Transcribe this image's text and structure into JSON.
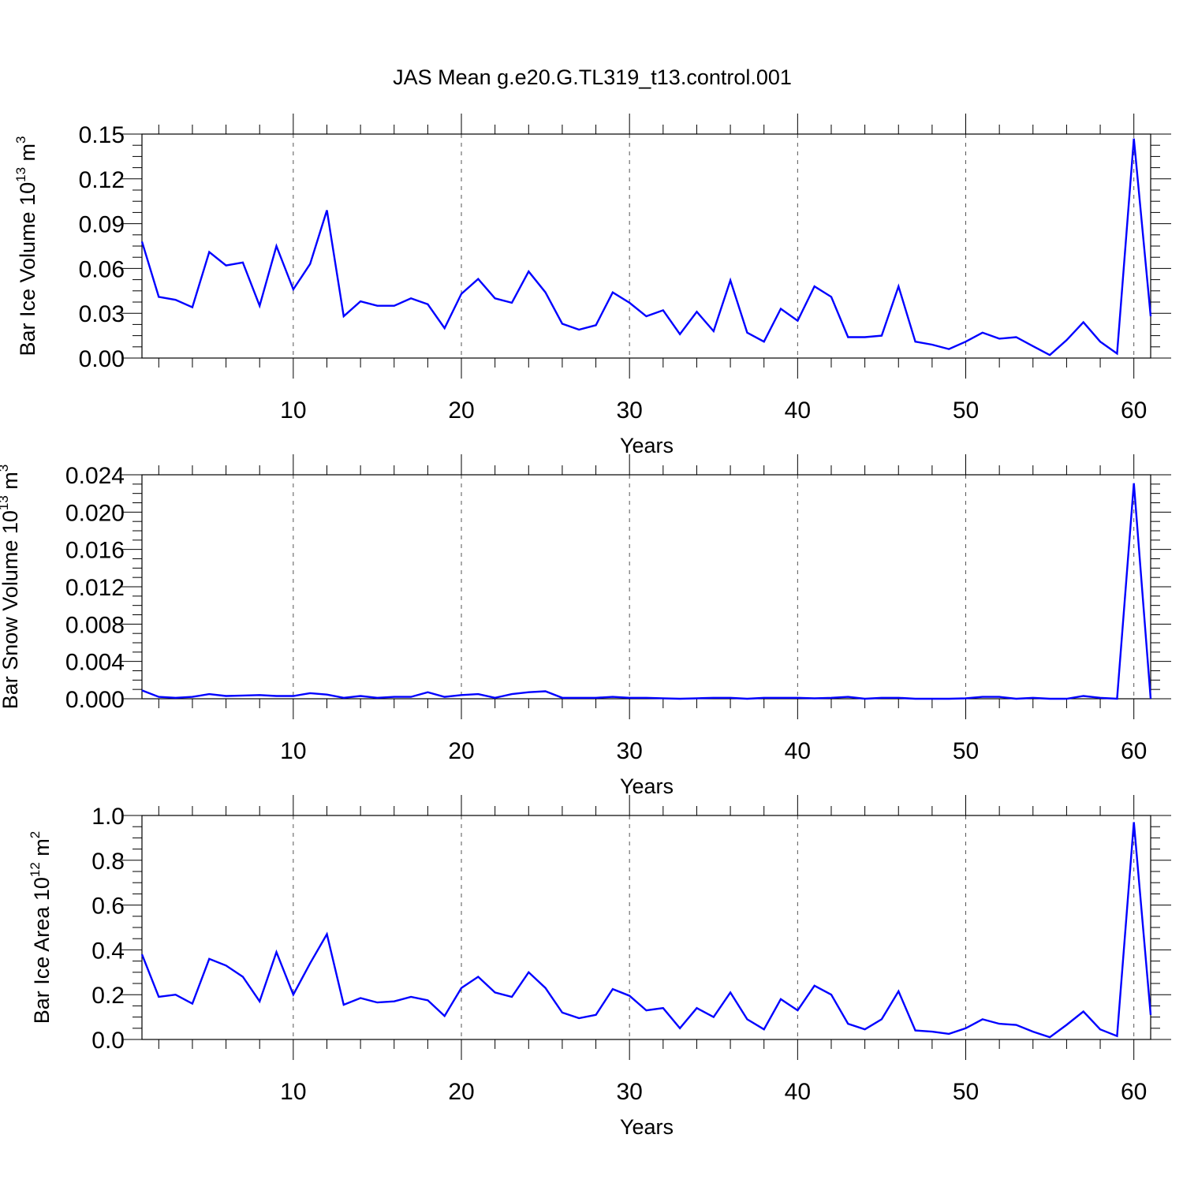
{
  "title": "JAS Mean g.e20.G.TL319_t13.control.001",
  "colors": {
    "series_line": "#0000ff",
    "axis": "#000000",
    "grid": "#555555",
    "background": "#ffffff"
  },
  "chart_data": [
    {
      "type": "line",
      "ylabel": {
        "prefix": "Bar Ice Volume 10",
        "exponent": "13",
        "unit": " m",
        "unit_exponent": "3"
      },
      "xlabel": "Years",
      "xlim": [
        1,
        61
      ],
      "ylim": [
        0,
        0.15
      ],
      "xticks": [
        10,
        20,
        30,
        40,
        50,
        60
      ],
      "xtick_labels": [
        "10",
        "20",
        "30",
        "40",
        "50",
        "60"
      ],
      "yticks": [
        0,
        0.03,
        0.06,
        0.09,
        0.12,
        0.15
      ],
      "ytick_labels": [
        "0.00",
        "0.03",
        "0.06",
        "0.09",
        "0.12",
        "0.15"
      ],
      "grid": "vertical dashed at major x ticks",
      "x": [
        1,
        2,
        3,
        4,
        5,
        6,
        7,
        8,
        9,
        10,
        11,
        12,
        13,
        14,
        15,
        16,
        17,
        18,
        19,
        20,
        21,
        22,
        23,
        24,
        25,
        26,
        27,
        28,
        29,
        30,
        31,
        32,
        33,
        34,
        35,
        36,
        37,
        38,
        39,
        40,
        41,
        42,
        43,
        44,
        45,
        46,
        47,
        48,
        49,
        50,
        51,
        52,
        53,
        54,
        55,
        56,
        57,
        58,
        59,
        60,
        61
      ],
      "series": [
        {
          "values": [
            0.078,
            0.041,
            0.039,
            0.034,
            0.071,
            0.062,
            0.064,
            0.035,
            0.075,
            0.046,
            0.063,
            0.099,
            0.028,
            0.038,
            0.035,
            0.035,
            0.04,
            0.036,
            0.02,
            0.043,
            0.053,
            0.04,
            0.037,
            0.058,
            0.044,
            0.023,
            0.019,
            0.022,
            0.044,
            0.037,
            0.028,
            0.032,
            0.016,
            0.031,
            0.018,
            0.052,
            0.017,
            0.011,
            0.033,
            0.025,
            0.048,
            0.041,
            0.014,
            0.014,
            0.015,
            0.048,
            0.011,
            0.009,
            0.006,
            0.011,
            0.017,
            0.013,
            0.014,
            0.008,
            0.002,
            0.012,
            0.024,
            0.011,
            0.003,
            0.147,
            0.028
          ]
        }
      ]
    },
    {
      "type": "line",
      "ylabel": {
        "prefix": "Bar Snow Volume 10",
        "exponent": "13",
        "unit": " m",
        "unit_exponent": "3"
      },
      "xlabel": "Years",
      "xlim": [
        1,
        61
      ],
      "ylim": [
        0,
        0.024
      ],
      "xticks": [
        10,
        20,
        30,
        40,
        50,
        60
      ],
      "xtick_labels": [
        "10",
        "20",
        "30",
        "40",
        "50",
        "60"
      ],
      "yticks": [
        0,
        0.004,
        0.008,
        0.012,
        0.016,
        0.02,
        0.024
      ],
      "ytick_labels": [
        "0.000",
        "0.004",
        "0.008",
        "0.012",
        "0.016",
        "0.020",
        "0.024"
      ],
      "grid": "vertical dashed at major x ticks",
      "x": [
        1,
        2,
        3,
        4,
        5,
        6,
        7,
        8,
        9,
        10,
        11,
        12,
        13,
        14,
        15,
        16,
        17,
        18,
        19,
        20,
        21,
        22,
        23,
        24,
        25,
        26,
        27,
        28,
        29,
        30,
        31,
        32,
        33,
        34,
        35,
        36,
        37,
        38,
        39,
        40,
        41,
        42,
        43,
        44,
        45,
        46,
        47,
        48,
        49,
        50,
        51,
        52,
        53,
        54,
        55,
        56,
        57,
        58,
        59,
        60,
        61
      ],
      "series": [
        {
          "values": [
            0.0009,
            0.0002,
            0.0001,
            0.0002,
            0.0005,
            0.0003,
            0.00035,
            0.0004,
            0.0003,
            0.0003,
            0.0006,
            0.00045,
            0.0001,
            0.0003,
            0.0001,
            0.0002,
            0.0002,
            0.0007,
            0.0002,
            0.0004,
            0.0005,
            0.0001,
            0.0005,
            0.0007,
            0.0008,
            0.0001,
            0.0001,
            0.0001,
            0.0002,
            0.0001,
            0.0001,
            5e-05,
            0.0,
            5e-05,
            0.0001,
            0.0001,
            0.0,
            0.0001,
            0.0001,
            0.0001,
            5e-05,
            0.0001,
            0.0002,
            0.0,
            0.0001,
            0.0001,
            0.0,
            0.0,
            0.0,
            5e-05,
            0.0002,
            0.0002,
            0.0,
            0.0001,
            0.0,
            0.0,
            0.0003,
            0.0001,
            0.0,
            0.0231,
            0.0
          ]
        }
      ]
    },
    {
      "type": "line",
      "ylabel": {
        "prefix": "Bar Ice Area 10",
        "exponent": "12",
        "unit": " m",
        "unit_exponent": "2"
      },
      "xlabel": "Years",
      "xlim": [
        1,
        61
      ],
      "ylim": [
        0,
        1.0
      ],
      "xticks": [
        10,
        20,
        30,
        40,
        50,
        60
      ],
      "xtick_labels": [
        "10",
        "20",
        "30",
        "40",
        "50",
        "60"
      ],
      "yticks": [
        0,
        0.2,
        0.4,
        0.6,
        0.8,
        1.0
      ],
      "ytick_labels": [
        "0.0",
        "0.2",
        "0.4",
        "0.6",
        "0.8",
        "1.0"
      ],
      "grid": "vertical dashed at major x ticks",
      "x": [
        1,
        2,
        3,
        4,
        5,
        6,
        7,
        8,
        9,
        10,
        11,
        12,
        13,
        14,
        15,
        16,
        17,
        18,
        19,
        20,
        21,
        22,
        23,
        24,
        25,
        26,
        27,
        28,
        29,
        30,
        31,
        32,
        33,
        34,
        35,
        36,
        37,
        38,
        39,
        40,
        41,
        42,
        43,
        44,
        45,
        46,
        47,
        48,
        49,
        50,
        51,
        52,
        53,
        54,
        55,
        56,
        57,
        58,
        59,
        60,
        61
      ],
      "series": [
        {
          "values": [
            0.38,
            0.19,
            0.2,
            0.16,
            0.36,
            0.33,
            0.28,
            0.17,
            0.39,
            0.2,
            0.34,
            0.47,
            0.155,
            0.185,
            0.165,
            0.17,
            0.19,
            0.175,
            0.105,
            0.23,
            0.28,
            0.21,
            0.19,
            0.3,
            0.23,
            0.12,
            0.095,
            0.11,
            0.225,
            0.195,
            0.13,
            0.14,
            0.05,
            0.14,
            0.1,
            0.21,
            0.09,
            0.045,
            0.18,
            0.13,
            0.24,
            0.2,
            0.07,
            0.045,
            0.09,
            0.215,
            0.04,
            0.035,
            0.025,
            0.05,
            0.09,
            0.07,
            0.065,
            0.035,
            0.01,
            0.065,
            0.125,
            0.045,
            0.015,
            0.97,
            0.11
          ]
        }
      ]
    }
  ]
}
